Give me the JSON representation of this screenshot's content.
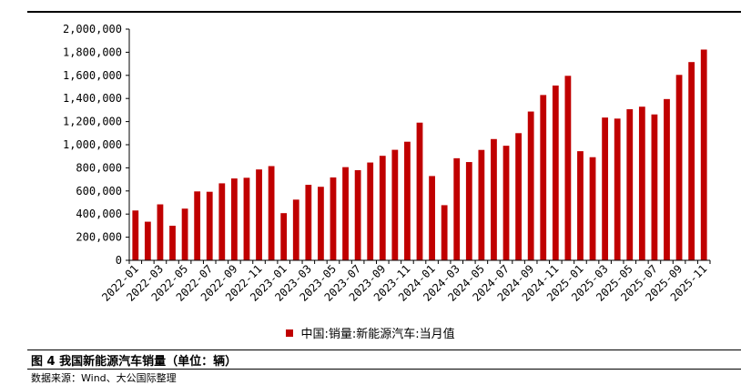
{
  "figure": {
    "caption": "图 4  我国新能源汽车销量（单位：辆）",
    "source": "数据来源：Wind、大公国际整理"
  },
  "colors": {
    "bar": "#c00000",
    "axis": "#000000"
  },
  "chart_data": {
    "type": "bar",
    "title": "",
    "xlabel": "",
    "ylabel": "",
    "ylim": [
      0,
      2000000
    ],
    "yticks": [
      0,
      200000,
      400000,
      600000,
      800000,
      1000000,
      1200000,
      1400000,
      1600000,
      1800000,
      2000000
    ],
    "ytick_labels": [
      "0",
      "200,000",
      "400,000",
      "600,000",
      "800,000",
      "1,000,000",
      "1,200,000",
      "1,400,000",
      "1,600,000",
      "1,800,000",
      "2,000,000"
    ],
    "categories": [
      "2022-01",
      "2022-02",
      "2022-03",
      "2022-04",
      "2022-05",
      "2022-06",
      "2022-07",
      "2022-08",
      "2022-09",
      "2022-10",
      "2022-11",
      "2022-12",
      "2023-01",
      "2023-02",
      "2023-03",
      "2023-04",
      "2023-05",
      "2023-06",
      "2023-07",
      "2023-08",
      "2023-09",
      "2023-10",
      "2023-11",
      "2023-12",
      "2024-01",
      "2024-02",
      "2024-03",
      "2024-04",
      "2024-05",
      "2024-06",
      "2024-07",
      "2024-08",
      "2024-09",
      "2024-10",
      "2024-11",
      "2024-12",
      "2025-01",
      "2025-02",
      "2025-03",
      "2025-04",
      "2025-05",
      "2025-06",
      "2025-07",
      "2025-08",
      "2025-09",
      "2025-10",
      "2025-11"
    ],
    "x_tick_labels": [
      "2022-01",
      "2022-03",
      "2022-05",
      "2022-07",
      "2022-09",
      "2022-11",
      "2023-01",
      "2023-03",
      "2023-05",
      "2023-07",
      "2023-09",
      "2023-11",
      "2024-01",
      "2024-03",
      "2024-05",
      "2024-07",
      "2024-09",
      "2024-11",
      "2025-01",
      "2025-03",
      "2025-05",
      "2025-07",
      "2025-09",
      "2025-11"
    ],
    "series": [
      {
        "name": "中国:销量:新能源汽车:当月值",
        "values": [
          431000,
          334000,
          484000,
          299000,
          447000,
          596000,
          593000,
          666000,
          708000,
          714000,
          786000,
          815000,
          408000,
          525000,
          653000,
          636000,
          717000,
          806000,
          780000,
          846000,
          904000,
          956000,
          1026000,
          1191000,
          729000,
          477000,
          883000,
          850000,
          955000,
          1049000,
          991000,
          1100000,
          1287000,
          1430000,
          1512000,
          1596000,
          944000,
          892000,
          1235000,
          1226000,
          1307000,
          1329000,
          1262000,
          1395000,
          1604000,
          1715000,
          1823000
        ]
      }
    ],
    "grid": false,
    "legend_position": "bottom"
  }
}
